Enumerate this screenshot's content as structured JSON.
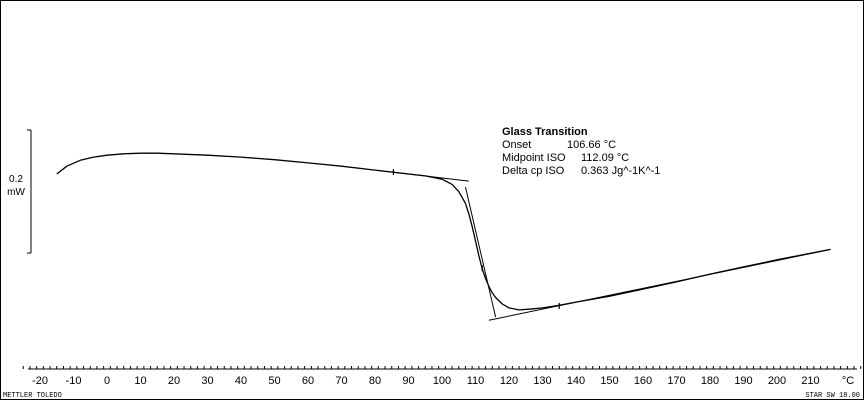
{
  "chart_data": {
    "type": "line",
    "xlabel": "°C",
    "xlim": [
      -25,
      225
    ],
    "x_ticks": [
      -20,
      -10,
      0,
      10,
      20,
      30,
      40,
      50,
      60,
      70,
      80,
      90,
      100,
      110,
      120,
      130,
      140,
      150,
      160,
      170,
      180,
      190,
      200,
      210
    ],
    "x_minor_step": 2,
    "y_scale_bar": {
      "value": "0.2",
      "unit": "mW"
    },
    "grid": false,
    "series": [
      {
        "x": [
          -15,
          -12,
          -8,
          -4,
          0,
          5,
          10,
          15,
          20,
          30,
          40,
          50,
          60,
          70,
          80,
          90,
          95,
          100,
          103,
          105,
          107,
          108,
          109,
          110,
          111,
          112,
          113,
          114,
          115,
          116,
          118,
          120,
          123,
          126,
          130,
          135,
          140,
          150,
          160,
          170,
          180,
          190,
          200,
          210,
          216
        ],
        "y": [
          0.0,
          0.012,
          0.021,
          0.026,
          0.029,
          0.031,
          0.032,
          0.032,
          0.031,
          0.029,
          0.026,
          0.022,
          0.017,
          0.012,
          0.006,
          0.0,
          -0.003,
          -0.008,
          -0.016,
          -0.027,
          -0.045,
          -0.061,
          -0.081,
          -0.103,
          -0.126,
          -0.146,
          -0.161,
          -0.173,
          -0.183,
          -0.19,
          -0.2,
          -0.206,
          -0.209,
          -0.208,
          -0.206,
          -0.202,
          -0.197,
          -0.188,
          -0.177,
          -0.166,
          -0.154,
          -0.143,
          -0.132,
          -0.122,
          -0.116
        ]
      }
    ],
    "tangent_lines": [
      {
        "x": [
          85,
          108
        ],
        "y": [
          0.003,
          -0.011
        ]
      },
      {
        "x": [
          114,
          216
        ],
        "y": [
          -0.225,
          -0.116
        ]
      },
      {
        "x": [
          107,
          116
        ],
        "y": [
          -0.02,
          -0.22
        ]
      }
    ],
    "markers": [
      {
        "x": 85.5,
        "y": 0.003
      },
      {
        "x": 135,
        "y": -0.203
      },
      {
        "x": 112,
        "y": -0.145
      }
    ],
    "annotations": {
      "title": "Glass Transition",
      "rows": [
        {
          "label": "Onset",
          "value": "106.66 °C"
        },
        {
          "label": "Midpoint ISO",
          "value": "112.09 °C"
        },
        {
          "label": "Delta cp ISO",
          "value": "0.363 Jg^-1K^-1"
        }
      ]
    }
  },
  "footer": {
    "left": "METTLER TOLEDO",
    "right": "STAR SW 18.00"
  }
}
